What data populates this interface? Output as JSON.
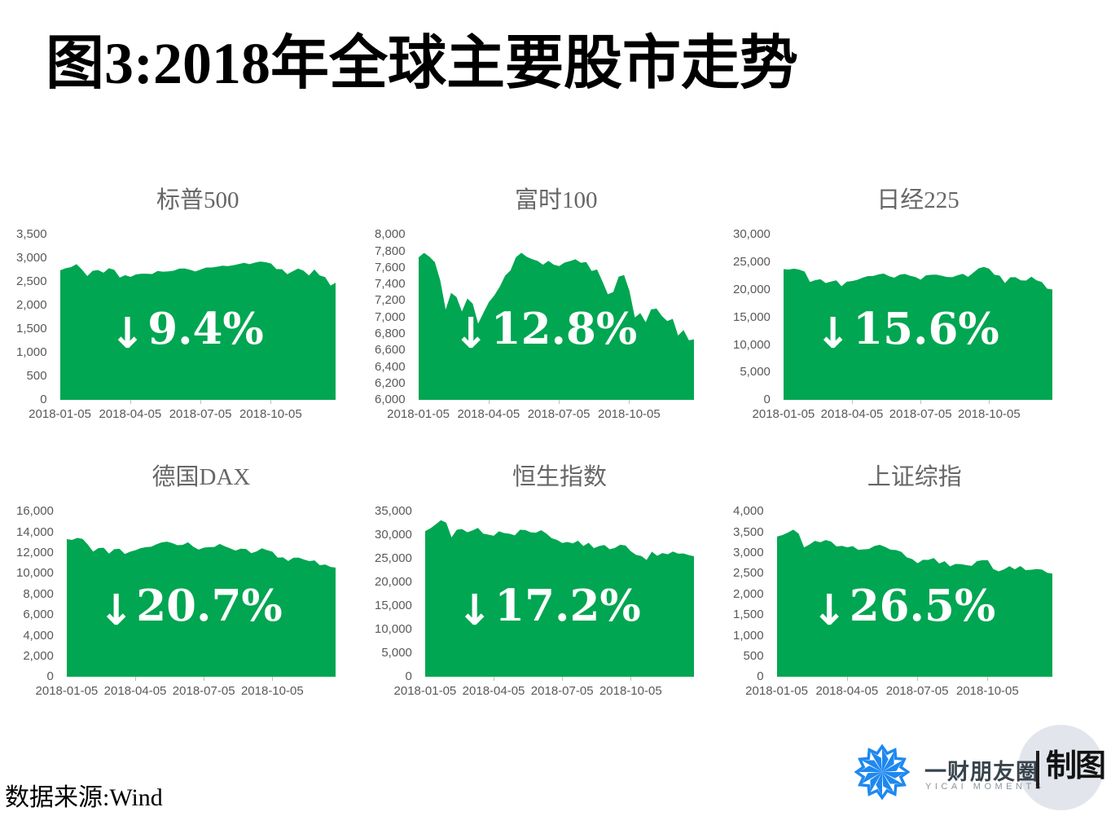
{
  "title": "图3:2018年全球主要股市走势",
  "source": "数据来源:Wind",
  "logo": {
    "brand": "一财朋友圈",
    "brand_sub": "YICAI MOMENTS",
    "badge": "制图"
  },
  "colors": {
    "area_green": "#00A651",
    "logo_blue": "#1E88F0",
    "badge_circle": "#E2E6EC",
    "axis_text": "#595959",
    "subplot_title": "#666666"
  },
  "chart_data": [
    {
      "type": "area",
      "title": "标普500",
      "change": {
        "arrow": "↓",
        "value": "9.4%"
      },
      "ymin": 0,
      "ymax": 3500,
      "y_ticks": [
        "3,500",
        "3,000",
        "2,500",
        "2,000",
        "1,500",
        "1,000",
        "500",
        "0"
      ],
      "x_ticks": [
        "2018-01-05",
        "2018-04-05",
        "2018-07-05",
        "2018-10-05"
      ],
      "values": [
        2743,
        2786,
        2810,
        2873,
        2762,
        2620,
        2732,
        2747,
        2691,
        2787,
        2752,
        2588,
        2641,
        2604,
        2656,
        2670,
        2670,
        2663,
        2728,
        2713,
        2721,
        2735,
        2779,
        2782,
        2755,
        2718,
        2760,
        2801,
        2802,
        2819,
        2840,
        2833,
        2850,
        2875,
        2902,
        2872,
        2905,
        2930,
        2914,
        2886,
        2767,
        2768,
        2659,
        2723,
        2781,
        2736,
        2633,
        2760,
        2633,
        2600,
        2417,
        2486
      ]
    },
    {
      "type": "area",
      "title": "富时100",
      "change": {
        "arrow": "↓",
        "value": "12.8%"
      },
      "ymin": 6000,
      "ymax": 8000,
      "y_ticks": [
        "8,000",
        "7,800",
        "7,600",
        "7,400",
        "7,200",
        "7,000",
        "6,800",
        "6,600",
        "6,400",
        "6,200",
        "6,000"
      ],
      "x_ticks": [
        "2018-01-05",
        "2018-04-05",
        "2018-07-05",
        "2018-10-05"
      ],
      "values": [
        7724,
        7778,
        7731,
        7665,
        7443,
        7092,
        7294,
        7244,
        7069,
        7225,
        7164,
        6921,
        7056,
        7184,
        7264,
        7368,
        7502,
        7567,
        7725,
        7779,
        7730,
        7702,
        7681,
        7634,
        7682,
        7636,
        7618,
        7661,
        7679,
        7701,
        7659,
        7667,
        7559,
        7577,
        7432,
        7277,
        7304,
        7490,
        7510,
        7318,
        6996,
        7050,
        6939,
        7094,
        7105,
        7014,
        6953,
        6980,
        6778,
        6845,
        6721,
        6734
      ]
    },
    {
      "type": "area",
      "title": "日经225",
      "change": {
        "arrow": "↓",
        "value": "15.6%"
      },
      "ymin": 0,
      "ymax": 30000,
      "y_ticks": [
        "30,000",
        "25,000",
        "20,000",
        "15,000",
        "10,000",
        "5,000",
        "0"
      ],
      "x_ticks": [
        "2018-01-05",
        "2018-04-05",
        "2018-07-05",
        "2018-10-05"
      ],
      "values": [
        23715,
        23653,
        23808,
        23632,
        23275,
        21383,
        21720,
        21893,
        21182,
        21469,
        21677,
        20618,
        21454,
        21567,
        21779,
        22162,
        22468,
        22473,
        22758,
        22930,
        22451,
        22171,
        22695,
        22852,
        22517,
        22305,
        21788,
        22597,
        22698,
        22713,
        22525,
        22298,
        22270,
        22602,
        22865,
        22307,
        23095,
        23870,
        24120,
        23784,
        22695,
        22532,
        21185,
        22243,
        22250,
        21680,
        21647,
        22351,
        21679,
        21375,
        20166,
        20015
      ]
    },
    {
      "type": "area",
      "title": "德国DAX",
      "change": {
        "arrow": "↓",
        "value": "20.7%"
      },
      "ymin": 0,
      "ymax": 16000,
      "y_ticks": [
        "16,000",
        "14,000",
        "12,000",
        "10,000",
        "8,000",
        "6,000",
        "4,000",
        "2,000",
        "0"
      ],
      "x_ticks": [
        "2018-01-05",
        "2018-04-05",
        "2018-07-05",
        "2018-10-05"
      ],
      "values": [
        13320,
        13245,
        13434,
        13340,
        12785,
        12107,
        12452,
        12483,
        11914,
        12347,
        12389,
        11886,
        12097,
        12241,
        12442,
        12541,
        12581,
        12820,
        13001,
        13078,
        12938,
        12724,
        12767,
        13011,
        12580,
        12306,
        12496,
        12541,
        12561,
        12860,
        12616,
        12424,
        12211,
        12394,
        12364,
        11960,
        12124,
        12431,
        12247,
        12112,
        11524,
        11554,
        11201,
        11519,
        11529,
        11341,
        11193,
        11257,
        10788,
        10866,
        10634,
        10559
      ]
    },
    {
      "type": "area",
      "title": "恒生指数",
      "change": {
        "arrow": "↓",
        "value": "17.2%"
      },
      "ymin": 0,
      "ymax": 35000,
      "y_ticks": [
        "35,000",
        "30,000",
        "25,000",
        "20,000",
        "15,000",
        "10,000",
        "5,000",
        "0"
      ],
      "x_ticks": [
        "2018-01-05",
        "2018-04-05",
        "2018-07-05",
        "2018-10-05"
      ],
      "values": [
        30815,
        31413,
        32255,
        33154,
        32601,
        29507,
        31115,
        31267,
        30583,
        30996,
        31501,
        30309,
        30093,
        29845,
        30808,
        30418,
        30280,
        29926,
        31122,
        31048,
        30588,
        30493,
        31032,
        30309,
        29338,
        28955,
        28316,
        28525,
        28224,
        28804,
        27676,
        28367,
        27213,
        27671,
        27889,
        26973,
        27286,
        27954,
        27789,
        26573,
        25801,
        25561,
        24718,
        26486,
        25601,
        26183,
        25928,
        26507,
        26064,
        26095,
        25753,
        25504
      ]
    },
    {
      "type": "area",
      "title": "上证综指",
      "change": {
        "arrow": "↓",
        "value": "26.5%"
      },
      "ymin": 0,
      "ymax": 4000,
      "y_ticks": [
        "4,000",
        "3,500",
        "3,000",
        "2,500",
        "2,000",
        "1,500",
        "1,000",
        "500",
        "0"
      ],
      "x_ticks": [
        "2018-01-05",
        "2018-04-05",
        "2018-07-05",
        "2018-10-05"
      ],
      "values": [
        3392,
        3429,
        3488,
        3558,
        3462,
        3129,
        3199,
        3289,
        3255,
        3307,
        3270,
        3153,
        3168,
        3131,
        3159,
        3071,
        3082,
        3091,
        3163,
        3193,
        3141,
        3075,
        3067,
        3021,
        2890,
        2847,
        2747,
        2831,
        2829,
        2873,
        2740,
        2795,
        2669,
        2729,
        2725,
        2702,
        2682,
        2797,
        2821,
        2821,
        2606,
        2550,
        2598,
        2676,
        2599,
        2679,
        2579,
        2588,
        2606,
        2594,
        2516,
        2494
      ]
    }
  ]
}
